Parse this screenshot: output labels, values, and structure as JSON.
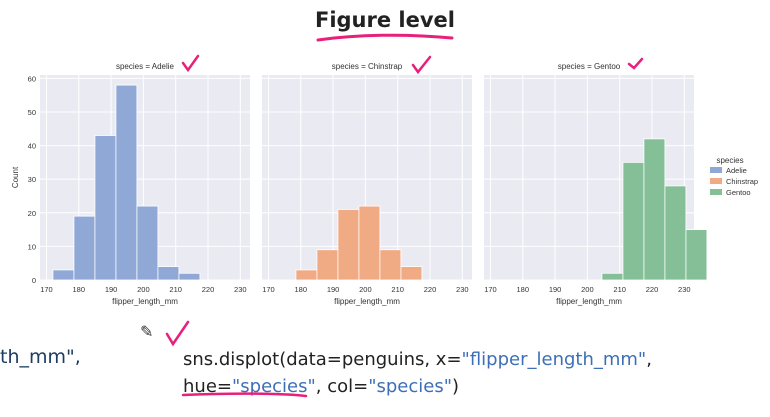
{
  "slide": {
    "title": "Figure level",
    "code_fragment_left": "th_mm\",",
    "code": {
      "line1": {
        "fn": "sns.displot(data=penguins, x=",
        "str": "\"flipper_length_mm\"",
        "end": ","
      },
      "line2": {
        "kw": "hue=",
        "str1": "\"species\"",
        "mid": ", col=",
        "str2": "\"species\"",
        "end": ")"
      }
    },
    "annotation_color": "#e8207c"
  },
  "chart_data": {
    "type": "bar",
    "layout": "facet-columns",
    "x_label": "flipper_length_mm",
    "y_label": "Count",
    "x_ticks": [
      170,
      180,
      190,
      200,
      210,
      220,
      230
    ],
    "xlim": [
      168,
      233
    ],
    "ylim": [
      0,
      61
    ],
    "y_ticks": [
      0,
      10,
      20,
      30,
      40,
      50,
      60
    ],
    "grid": true,
    "background": "#eaeaf2",
    "legend": {
      "title": "species",
      "placement": "right",
      "entries": [
        {
          "label": "Adelie",
          "color": "#8fa8d6"
        },
        {
          "label": "Chinstrap",
          "color": "#f0aa84"
        },
        {
          "label": "Gentoo",
          "color": "#84bf98"
        }
      ]
    },
    "bin_width": 6.5,
    "panels": [
      {
        "title": "species = Adelie",
        "color": "#8fa8d6",
        "bins": [
          {
            "x0": 172,
            "count": 3
          },
          {
            "x0": 178.5,
            "count": 19
          },
          {
            "x0": 185,
            "count": 43
          },
          {
            "x0": 191.5,
            "count": 58
          },
          {
            "x0": 198,
            "count": 22
          },
          {
            "x0": 204.5,
            "count": 4
          },
          {
            "x0": 211,
            "count": 2
          }
        ]
      },
      {
        "title": "species = Chinstrap",
        "color": "#f0aa84",
        "bins": [
          {
            "x0": 178.5,
            "count": 3
          },
          {
            "x0": 185,
            "count": 9
          },
          {
            "x0": 191.5,
            "count": 21
          },
          {
            "x0": 198,
            "count": 22
          },
          {
            "x0": 204.5,
            "count": 9
          },
          {
            "x0": 211,
            "count": 4
          }
        ]
      },
      {
        "title": "species = Gentoo",
        "color": "#84bf98",
        "bins": [
          {
            "x0": 204.5,
            "count": 2
          },
          {
            "x0": 211,
            "count": 35
          },
          {
            "x0": 217.5,
            "count": 42
          },
          {
            "x0": 224,
            "count": 28
          },
          {
            "x0": 230.5,
            "count": 15
          }
        ]
      }
    ]
  }
}
